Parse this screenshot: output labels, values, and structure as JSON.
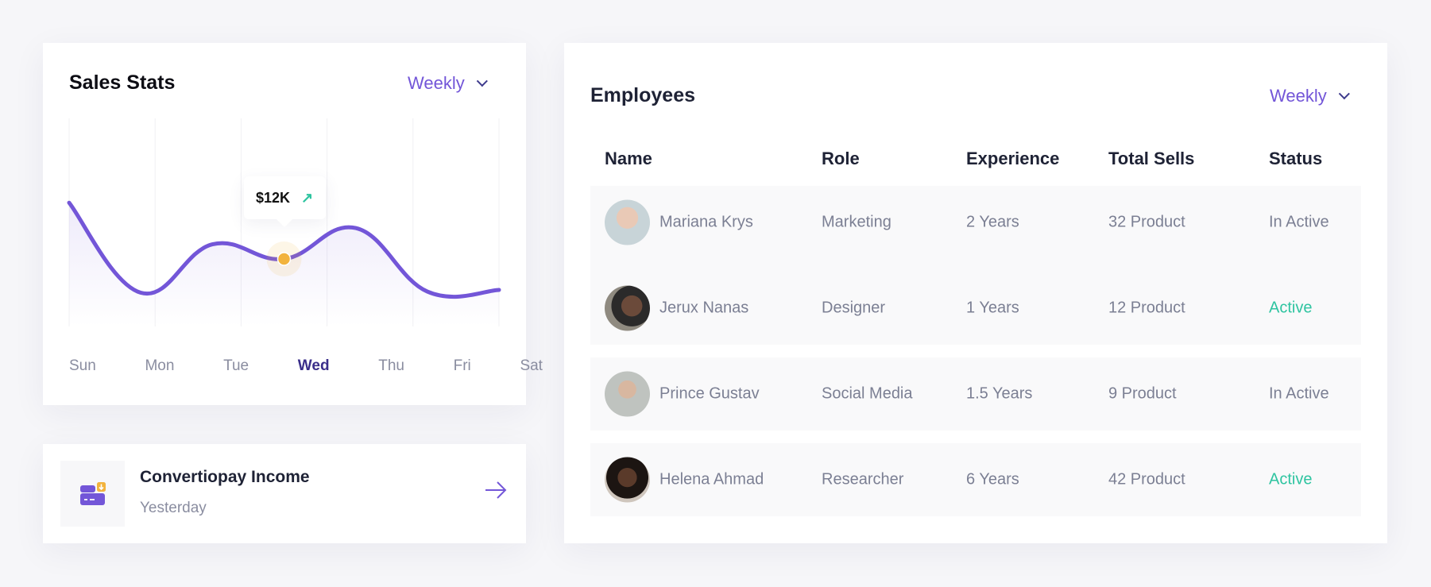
{
  "sales": {
    "title": "Sales Stats",
    "period": "Weekly",
    "tooltip": {
      "value": "$12K",
      "trend_icon": "arrow-up-right-icon"
    },
    "days": [
      "Sun",
      "Mon",
      "Tue",
      "Wed",
      "Thu",
      "Fri",
      "Sat"
    ],
    "selected_day": "Wed"
  },
  "chart_data": {
    "type": "line",
    "categories": [
      "Sun",
      "Mon",
      "Tue",
      "Wed",
      "Thu",
      "Fri",
      "Sat"
    ],
    "values": [
      22,
      6,
      14.6,
      12,
      17.5,
      6.2,
      6.5
    ],
    "highlight": {
      "category": "Wed",
      "label": "$12K"
    },
    "ylim": [
      0,
      37
    ],
    "grid": "vertical",
    "line_color": "#7356d8",
    "marker_color": "#f2b33d"
  },
  "income": {
    "title": "Convertiopay Income",
    "subtitle": "Yesterday",
    "icon": "wallet-download-icon",
    "action_icon": "arrow-right-icon"
  },
  "employees": {
    "title": "Employees",
    "period": "Weekly",
    "columns": [
      "Name",
      "Role",
      "Experience",
      "Total Sells",
      "Status"
    ],
    "rows": [
      {
        "name": "Mariana Krys",
        "role": "Marketing",
        "experience": "2 Years",
        "sells": "32 Product",
        "status": "In Active"
      },
      {
        "name": "Jerux Nanas",
        "role": "Designer",
        "experience": "1 Years",
        "sells": "12 Product",
        "status": "Active"
      },
      {
        "name": "Prince Gustav",
        "role": "Social Media",
        "experience": "1.5 Years",
        "sells": "9 Product",
        "status": "In Active"
      },
      {
        "name": "Helena Ahmad",
        "role": "Researcher",
        "experience": "6 Years",
        "sells": "42 Product",
        "status": "Active"
      }
    ]
  },
  "colors": {
    "accent": "#7356d8",
    "active": "#2ec4a0",
    "muted": "#7b7f93",
    "heading": "#1e2235"
  }
}
